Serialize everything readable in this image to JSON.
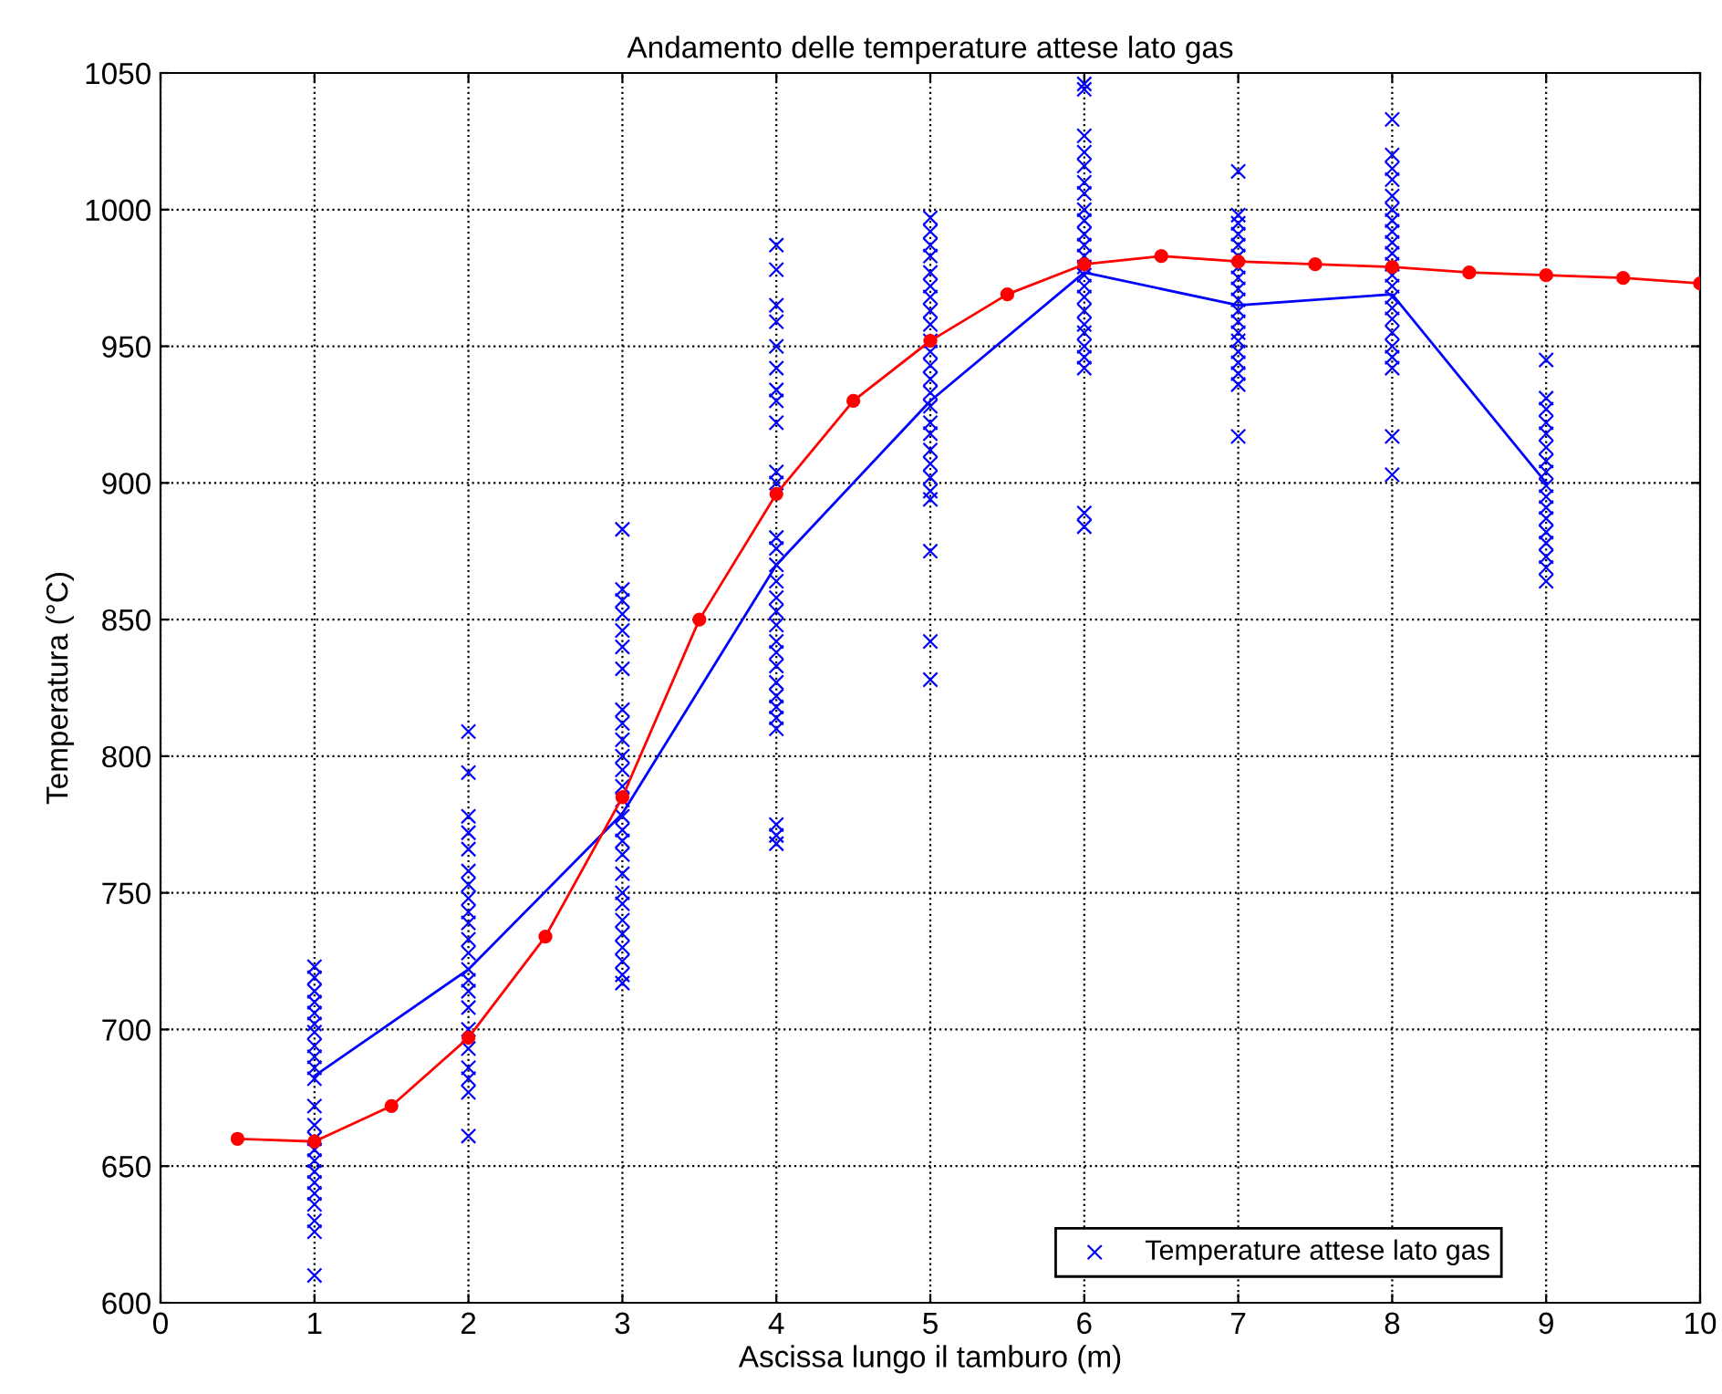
{
  "chart_data": {
    "type": "line",
    "title": "Andamento delle temperature attese lato gas",
    "xlabel": "Ascissa lungo il tamburo (m)",
    "ylabel": "Temperatura (°C)",
    "xlim": [
      0,
      10
    ],
    "xticks": [
      0,
      1,
      2,
      3,
      4,
      5,
      6,
      7,
      8,
      9,
      10
    ],
    "ylim": [
      600,
      1050
    ],
    "yticks": [
      600,
      650,
      700,
      750,
      800,
      850,
      900,
      950,
      1000,
      1050
    ],
    "grid": true,
    "legend": "bottom right",
    "series": [
      {
        "name": "Temperature attese lato gas",
        "type": "scatter",
        "marker": "cross",
        "color": "#0000ff",
        "x": [
          1,
          1,
          1,
          1,
          1,
          1,
          1,
          1,
          1,
          1,
          1,
          1,
          1,
          1,
          1,
          1,
          1,
          1,
          1,
          1,
          1,
          1,
          1,
          2,
          2,
          2,
          2,
          2,
          2,
          2,
          2,
          2,
          2,
          2,
          2,
          2,
          2,
          2,
          2,
          2,
          2,
          2,
          2,
          2,
          2,
          3,
          3,
          3,
          3,
          3,
          3,
          3,
          3,
          3,
          3,
          3,
          3,
          3,
          3,
          3,
          3,
          3,
          3,
          3,
          3,
          3,
          3,
          3,
          3,
          3,
          3,
          3,
          4,
          4,
          4,
          4,
          4,
          4,
          4,
          4,
          4,
          4,
          4,
          4,
          4,
          4,
          4,
          4,
          4,
          4,
          4,
          4,
          4,
          4,
          4,
          4,
          4,
          4,
          4,
          4,
          4,
          5,
          5,
          5,
          5,
          5,
          5,
          5,
          5,
          5,
          5,
          5,
          5,
          5,
          5,
          5,
          5,
          5,
          5,
          5,
          5,
          5,
          5,
          5,
          5,
          5,
          6,
          6,
          6,
          6,
          6,
          6,
          6,
          6,
          6,
          6,
          6,
          6,
          6,
          6,
          6,
          6,
          6,
          6,
          6,
          6,
          6,
          6,
          6,
          6,
          7,
          7,
          7,
          7,
          7,
          7,
          7,
          7,
          7,
          7,
          7,
          7,
          7,
          7,
          7,
          7,
          7,
          7,
          7,
          8,
          8,
          8,
          8,
          8,
          8,
          8,
          8,
          8,
          8,
          8,
          8,
          8,
          8,
          8,
          8,
          8,
          8,
          8,
          8,
          8,
          8,
          9,
          9,
          9,
          9,
          9,
          9,
          9,
          9,
          9,
          9,
          9,
          9,
          9,
          9,
          9,
          9,
          9
        ],
        "values": [
          723,
          719,
          714,
          710,
          706,
          702,
          699,
          694,
          690,
          686,
          682,
          672,
          665,
          660,
          656,
          652,
          648,
          644,
          640,
          636,
          630,
          626,
          610,
          809,
          794,
          778,
          772,
          766,
          758,
          753,
          748,
          743,
          739,
          733,
          728,
          722,
          718,
          714,
          708,
          700,
          693,
          686,
          682,
          677,
          661,
          883,
          861,
          857,
          852,
          846,
          840,
          832,
          817,
          812,
          806,
          800,
          795,
          789,
          784,
          778,
          773,
          769,
          764,
          757,
          750,
          746,
          740,
          735,
          730,
          725,
          720,
          717,
          987,
          978,
          965,
          959,
          950,
          942,
          934,
          930,
          922,
          904,
          900,
          880,
          876,
          870,
          864,
          858,
          853,
          848,
          842,
          838,
          833,
          827,
          822,
          818,
          814,
          810,
          775,
          771,
          768,
          997,
          992,
          987,
          983,
          977,
          972,
          968,
          963,
          958,
          952,
          948,
          943,
          938,
          933,
          928,
          922,
          918,
          912,
          907,
          902,
          897,
          894,
          875,
          842,
          828,
          1046,
          1044,
          1027,
          1021,
          1016,
          1010,
          1006,
          1000,
          996,
          991,
          987,
          983,
          979,
          976,
          972,
          968,
          963,
          958,
          955,
          950,
          946,
          942,
          889,
          884,
          1014,
          998,
          995,
          991,
          987,
          983,
          979,
          975,
          971,
          967,
          963,
          959,
          955,
          952,
          948,
          944,
          940,
          936,
          917,
          1033,
          1020,
          1015,
          1011,
          1005,
          1000,
          996,
          992,
          988,
          984,
          980,
          976,
          972,
          968,
          964,
          960,
          955,
          950,
          946,
          942,
          917,
          903,
          945,
          931,
          927,
          922,
          918,
          913,
          908,
          904,
          899,
          895,
          891,
          887,
          882,
          878,
          873,
          869,
          864
        ]
      },
      {
        "marker": "none",
        "color": "#0000ff",
        "x": [
          1,
          2,
          3,
          4,
          5,
          6,
          7,
          8,
          9
        ],
        "values": [
          683,
          722,
          779,
          870,
          930,
          977,
          965,
          969,
          900
        ]
      },
      {
        "marker": "circle",
        "color": "#ff0000",
        "x": [
          0.5,
          1,
          1.5,
          2,
          2.5,
          3,
          3.5,
          4,
          4.5,
          5,
          5.5,
          6,
          6.5,
          7,
          7.5,
          8,
          8.5,
          9,
          9.5,
          10
        ],
        "values": [
          660,
          659,
          672,
          697,
          734,
          785,
          850,
          896,
          930,
          952,
          969,
          980,
          983,
          981,
          980,
          979,
          977,
          976,
          975,
          973
        ]
      }
    ]
  }
}
